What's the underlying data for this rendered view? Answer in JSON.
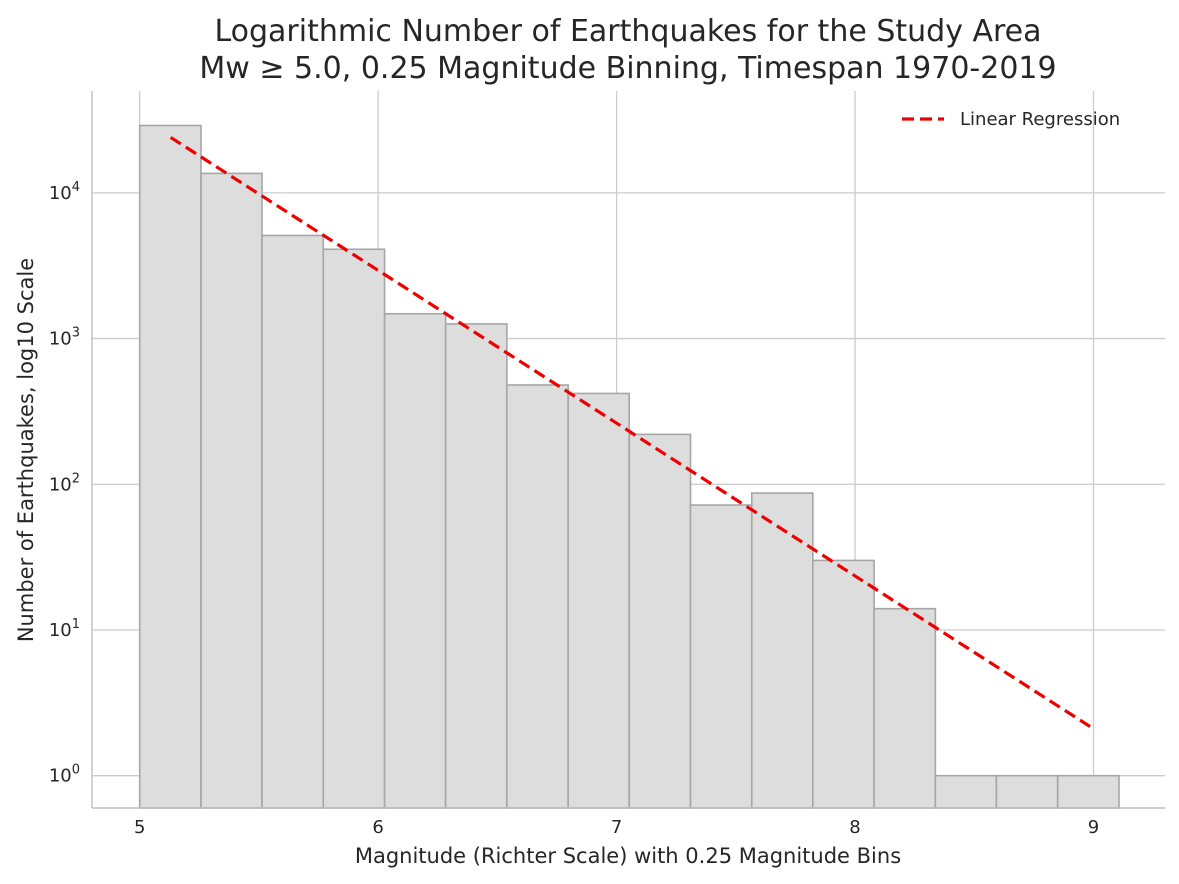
{
  "chart_data": {
    "type": "bar",
    "title_lines": [
      "Logarithmic Number of Earthquakes for the Study Area",
      "Mw ≥ 5.0, 0.25 Magnitude Binning, Timespan 1970-2019"
    ],
    "xlabel": "Magnitude (Richter Scale) with 0.25 Magnitude Bins",
    "ylabel": "Number of Earthquakes, log10 Scale",
    "y_scale": "log10",
    "xlim": [
      4.8,
      9.3
    ],
    "ylim": [
      0.6,
      50000
    ],
    "grid": true,
    "x_ticks": [
      5,
      6,
      7,
      8,
      9
    ],
    "x_tick_labels": [
      "5",
      "6",
      "7",
      "8",
      "9"
    ],
    "y_ticks": [
      1,
      10,
      100,
      1000,
      10000
    ],
    "y_tick_base": "10",
    "y_tick_exponents": [
      "0",
      "1",
      "2",
      "3",
      "4"
    ],
    "bins": [
      {
        "x0": 5.0,
        "x1": 5.257,
        "count": 29000
      },
      {
        "x0": 5.257,
        "x1": 5.513,
        "count": 13600
      },
      {
        "x0": 5.513,
        "x1": 5.77,
        "count": 5100
      },
      {
        "x0": 5.77,
        "x1": 6.027,
        "count": 4100
      },
      {
        "x0": 6.027,
        "x1": 6.283,
        "count": 1480
      },
      {
        "x0": 6.283,
        "x1": 6.54,
        "count": 1260
      },
      {
        "x0": 6.54,
        "x1": 6.797,
        "count": 480
      },
      {
        "x0": 6.797,
        "x1": 7.053,
        "count": 420
      },
      {
        "x0": 7.053,
        "x1": 7.31,
        "count": 220
      },
      {
        "x0": 7.31,
        "x1": 7.567,
        "count": 72
      },
      {
        "x0": 7.567,
        "x1": 7.823,
        "count": 87
      },
      {
        "x0": 7.823,
        "x1": 8.08,
        "count": 30
      },
      {
        "x0": 8.08,
        "x1": 8.337,
        "count": 14
      },
      {
        "x0": 8.337,
        "x1": 8.593,
        "count": 1
      },
      {
        "x0": 8.593,
        "x1": 8.85,
        "count": 1
      },
      {
        "x0": 8.85,
        "x1": 9.107,
        "count": 1
      }
    ],
    "regression": {
      "name": "Linear Regression",
      "color": "#ee0000",
      "x": [
        5.13,
        9.0
      ],
      "y": [
        24000,
        2.1
      ]
    },
    "legend_position": "top-right",
    "bar_fill": "#dddddd",
    "bar_edge": "#a6a6a6"
  }
}
